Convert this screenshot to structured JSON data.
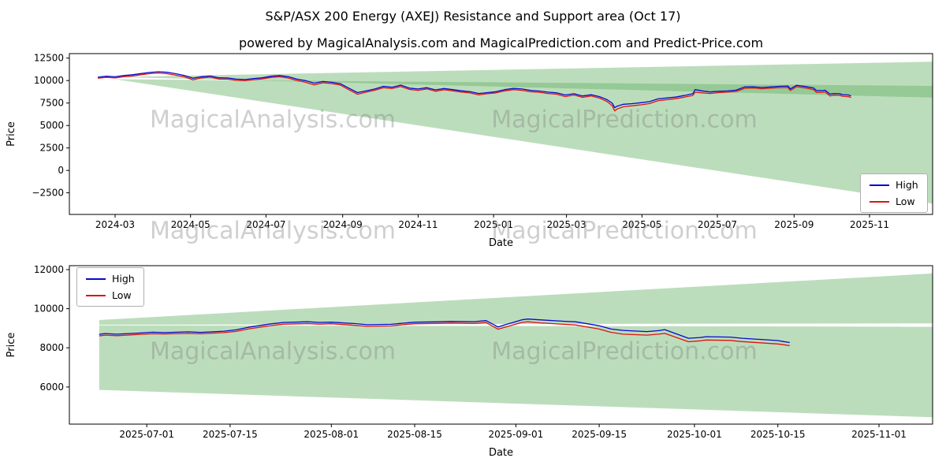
{
  "title": "S&P/ASX 200 Energy (AXEJ) Resistance and Support area (Oct 17)",
  "subtitle": "powered by MagicalAnalysis.com and MagicalPrediction.com and Predict-Price.com",
  "watermarks": {
    "analysis": "MagicalAnalysis.com",
    "prediction": "MagicalPrediction.com"
  },
  "colors": {
    "high": "#0808cf",
    "low": "#df1212",
    "band": "#5fae5f",
    "band_opacity": 0.42,
    "axis": "#000000",
    "watermark": "rgba(128,128,128,0.38)"
  },
  "chart_data": [
    {
      "type": "line",
      "title": "",
      "xlabel": "Date",
      "ylabel": "Price",
      "grid": false,
      "xlim": [
        "2024-01-24",
        "2025-12-22"
      ],
      "ylim": [
        -4900,
        13000
      ],
      "x_ticks": [
        {
          "d": "2024-03-01",
          "label": "2024-03"
        },
        {
          "d": "2024-05-01",
          "label": "2024-05"
        },
        {
          "d": "2024-07-01",
          "label": "2024-07"
        },
        {
          "d": "2024-09-01",
          "label": "2024-09"
        },
        {
          "d": "2024-11-01",
          "label": "2024-11"
        },
        {
          "d": "2025-01-01",
          "label": "2025-01"
        },
        {
          "d": "2025-03-01",
          "label": "2025-03"
        },
        {
          "d": "2025-05-01",
          "label": "2025-05"
        },
        {
          "d": "2025-07-01",
          "label": "2025-07"
        },
        {
          "d": "2025-09-01",
          "label": "2025-09"
        },
        {
          "d": "2025-11-01",
          "label": "2025-11"
        }
      ],
      "y_ticks": [
        {
          "v": -2500,
          "label": "−2500"
        },
        {
          "v": 0,
          "label": "0"
        },
        {
          "v": 2500,
          "label": "2500"
        },
        {
          "v": 5000,
          "label": "5000"
        },
        {
          "v": 7500,
          "label": "7500"
        },
        {
          "v": 10000,
          "label": "10000"
        },
        {
          "v": 12500,
          "label": "12500"
        }
      ],
      "legend": {
        "position": "lower right",
        "entries": [
          {
            "label": "High",
            "color": "#0808cf"
          },
          {
            "label": "Low",
            "color": "#df1212"
          }
        ]
      },
      "bands": [
        {
          "name": "resistance-area",
          "points": [
            [
              "2024-03-01",
              10400
            ],
            [
              "2025-12-22",
              12100
            ],
            [
              "2025-12-22",
              8100
            ]
          ]
        },
        {
          "name": "support-area",
          "points": [
            [
              "2024-03-01",
              10150
            ],
            [
              "2025-12-22",
              9400
            ],
            [
              "2025-12-22",
              -3700
            ]
          ]
        }
      ],
      "x": [
        "2024-02-16",
        "2024-02-23",
        "2024-03-01",
        "2024-03-08",
        "2024-03-15",
        "2024-03-22",
        "2024-03-29",
        "2024-04-05",
        "2024-04-12",
        "2024-04-19",
        "2024-04-26",
        "2024-05-03",
        "2024-05-10",
        "2024-05-17",
        "2024-05-24",
        "2024-05-31",
        "2024-06-07",
        "2024-06-14",
        "2024-06-21",
        "2024-06-28",
        "2024-07-05",
        "2024-07-12",
        "2024-07-19",
        "2024-07-26",
        "2024-08-02",
        "2024-08-09",
        "2024-08-16",
        "2024-08-23",
        "2024-08-30",
        "2024-09-06",
        "2024-09-13",
        "2024-09-20",
        "2024-09-27",
        "2024-10-04",
        "2024-10-11",
        "2024-10-18",
        "2024-10-25",
        "2024-11-01",
        "2024-11-08",
        "2024-11-15",
        "2024-11-22",
        "2024-11-29",
        "2024-12-06",
        "2024-12-13",
        "2024-12-20",
        "2024-12-27",
        "2025-01-03",
        "2025-01-10",
        "2025-01-17",
        "2025-01-24",
        "2025-01-31",
        "2025-02-07",
        "2025-02-14",
        "2025-02-21",
        "2025-02-28",
        "2025-03-07",
        "2025-03-14",
        "2025-03-21",
        "2025-03-28",
        "2025-04-03",
        "2025-04-07",
        "2025-04-09",
        "2025-04-11",
        "2025-04-16",
        "2025-04-23",
        "2025-04-30",
        "2025-05-07",
        "2025-05-14",
        "2025-05-21",
        "2025-05-28",
        "2025-06-04",
        "2025-06-11",
        "2025-06-13",
        "2025-06-18",
        "2025-06-25",
        "2025-07-02",
        "2025-07-09",
        "2025-07-16",
        "2025-07-23",
        "2025-07-30",
        "2025-08-06",
        "2025-08-13",
        "2025-08-20",
        "2025-08-27",
        "2025-08-29",
        "2025-09-03",
        "2025-09-10",
        "2025-09-17",
        "2025-09-19",
        "2025-09-24",
        "2025-09-26",
        "2025-09-30",
        "2025-10-03",
        "2025-10-08",
        "2025-10-10",
        "2025-10-15",
        "2025-10-17"
      ],
      "series": [
        {
          "name": "Low",
          "color": "#df1212",
          "values": [
            10260,
            10360,
            10300,
            10430,
            10520,
            10650,
            10770,
            10840,
            10760,
            10600,
            10410,
            10090,
            10300,
            10380,
            10170,
            10160,
            10020,
            9980,
            10100,
            10180,
            10350,
            10430,
            10280,
            10010,
            9810,
            9520,
            9750,
            9670,
            9510,
            8980,
            8470,
            8710,
            8920,
            9210,
            9110,
            9340,
            9010,
            8910,
            9070,
            8810,
            8970,
            8860,
            8720,
            8620,
            8400,
            8530,
            8630,
            8850,
            8990,
            8910,
            8760,
            8690,
            8560,
            8480,
            8220,
            8390,
            8130,
            8290,
            8030,
            7650,
            7180,
            6620,
            6840,
            7090,
            7190,
            7300,
            7440,
            7760,
            7870,
            7980,
            8150,
            8340,
            8700,
            8640,
            8560,
            8660,
            8700,
            8790,
            9130,
            9170,
            9090,
            9150,
            9220,
            9240,
            8890,
            9320,
            9180,
            8970,
            8680,
            8690,
            8740,
            8290,
            8380,
            8350,
            8250,
            8210,
            8120
          ]
        },
        {
          "name": "High",
          "color": "#0808cf",
          "values": [
            10380,
            10480,
            10420,
            10560,
            10650,
            10780,
            10900,
            10980,
            10920,
            10760,
            10560,
            10260,
            10430,
            10510,
            10310,
            10290,
            10160,
            10110,
            10230,
            10310,
            10480,
            10560,
            10430,
            10160,
            9990,
            9710,
            9890,
            9810,
            9660,
            9160,
            8660,
            8860,
            9060,
            9360,
            9260,
            9490,
            9160,
            9060,
            9210,
            8960,
            9110,
            8990,
            8860,
            8760,
            8560,
            8660,
            8760,
            8990,
            9130,
            9060,
            8910,
            8830,
            8710,
            8630,
            8390,
            8530,
            8290,
            8430,
            8190,
            7860,
            7470,
            6980,
            7160,
            7360,
            7430,
            7530,
            7660,
            7960,
            8060,
            8160,
            8330,
            8530,
            8990,
            8860,
            8730,
            8810,
            8840,
            8930,
            9290,
            9310,
            9230,
            9290,
            9360,
            9390,
            9070,
            9470,
            9340,
            9160,
            8890,
            8880,
            8930,
            8490,
            8560,
            8530,
            8430,
            8390,
            8290
          ]
        }
      ]
    },
    {
      "type": "line",
      "title": "",
      "xlabel": "Date",
      "ylabel": "Price",
      "grid": false,
      "xlim": [
        "2025-06-18",
        "2025-11-10"
      ],
      "ylim": [
        4100,
        12200
      ],
      "x_ticks": [
        {
          "d": "2025-07-01",
          "label": "2025-07-01"
        },
        {
          "d": "2025-07-15",
          "label": "2025-07-15"
        },
        {
          "d": "2025-08-01",
          "label": "2025-08-01"
        },
        {
          "d": "2025-08-15",
          "label": "2025-08-15"
        },
        {
          "d": "2025-09-01",
          "label": "2025-09-01"
        },
        {
          "d": "2025-09-15",
          "label": "2025-09-15"
        },
        {
          "d": "2025-10-01",
          "label": "2025-10-01"
        },
        {
          "d": "2025-10-15",
          "label": "2025-10-15"
        },
        {
          "d": "2025-11-01",
          "label": "2025-11-01"
        }
      ],
      "y_ticks": [
        {
          "v": 6000,
          "label": "6000"
        },
        {
          "v": 8000,
          "label": "8000"
        },
        {
          "v": 10000,
          "label": "10000"
        },
        {
          "v": 12000,
          "label": "12000"
        }
      ],
      "legend": {
        "position": "upper left",
        "entries": [
          {
            "label": "High",
            "color": "#0808cf"
          },
          {
            "label": "Low",
            "color": "#df1212"
          }
        ]
      },
      "bands": [
        {
          "name": "resistance-area",
          "points": [
            [
              "2025-06-23",
              9420
            ],
            [
              "2025-11-10",
              11800
            ],
            [
              "2025-11-10",
              9250
            ],
            [
              "2025-06-23",
              9180
            ]
          ]
        },
        {
          "name": "support-area",
          "points": [
            [
              "2025-06-23",
              9150
            ],
            [
              "2025-11-10",
              9080
            ],
            [
              "2025-11-10",
              4450
            ],
            [
              "2025-06-23",
              5850
            ]
          ]
        }
      ],
      "x": [
        "2025-06-23",
        "2025-06-24",
        "2025-06-26",
        "2025-06-30",
        "2025-07-02",
        "2025-07-04",
        "2025-07-08",
        "2025-07-10",
        "2025-07-14",
        "2025-07-16",
        "2025-07-18",
        "2025-07-22",
        "2025-07-24",
        "2025-07-28",
        "2025-07-30",
        "2025-08-01",
        "2025-08-05",
        "2025-08-07",
        "2025-08-11",
        "2025-08-13",
        "2025-08-15",
        "2025-08-19",
        "2025-08-21",
        "2025-08-25",
        "2025-08-27",
        "2025-08-29",
        "2025-09-02",
        "2025-09-03",
        "2025-09-05",
        "2025-09-09",
        "2025-09-11",
        "2025-09-15",
        "2025-09-17",
        "2025-09-19",
        "2025-09-23",
        "2025-09-25",
        "2025-09-26",
        "2025-09-30",
        "2025-10-02",
        "2025-10-03",
        "2025-10-07",
        "2025-10-09",
        "2025-10-13",
        "2025-10-14",
        "2025-10-15",
        "2025-10-16",
        "2025-10-17"
      ],
      "series": [
        {
          "name": "Low",
          "color": "#df1212",
          "values": [
            8610,
            8650,
            8620,
            8690,
            8720,
            8710,
            8740,
            8720,
            8780,
            8840,
            8960,
            9140,
            9210,
            9240,
            9210,
            9230,
            9150,
            9100,
            9120,
            9180,
            9230,
            9250,
            9270,
            9250,
            9290,
            8950,
            9300,
            9330,
            9280,
            9200,
            9170,
            8960,
            8790,
            8700,
            8650,
            8700,
            8740,
            8310,
            8360,
            8400,
            8380,
            8320,
            8240,
            8220,
            8200,
            8160,
            8110
          ]
        },
        {
          "name": "High",
          "color": "#0808cf",
          "values": [
            8690,
            8730,
            8700,
            8760,
            8800,
            8780,
            8820,
            8790,
            8850,
            8920,
            9050,
            9230,
            9300,
            9330,
            9300,
            9310,
            9240,
            9180,
            9200,
            9260,
            9310,
            9330,
            9350,
            9340,
            9390,
            9070,
            9430,
            9470,
            9430,
            9360,
            9330,
            9130,
            8960,
            8890,
            8830,
            8880,
            8930,
            8490,
            8530,
            8570,
            8550,
            8490,
            8410,
            8390,
            8370,
            8320,
            8270
          ]
        }
      ]
    }
  ]
}
